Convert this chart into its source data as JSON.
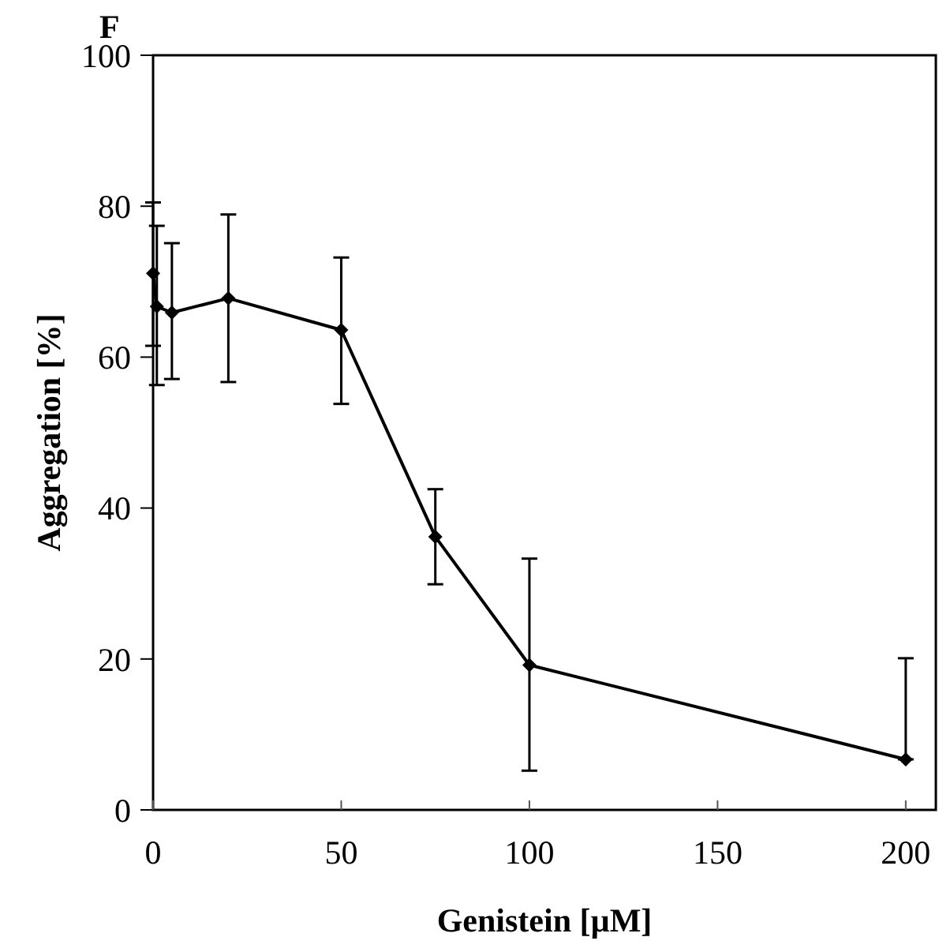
{
  "chart_data": {
    "type": "line",
    "xlabel": "Genistein [µM]",
    "ylabel": "Aggregation [%]",
    "annotations": [
      "F"
    ],
    "x": [
      0,
      1,
      5,
      20,
      50,
      75,
      100,
      200
    ],
    "series": [
      {
        "color": "#000000",
        "values": [
          71.1,
          66.7,
          65.9,
          67.8,
          63.6,
          36.2,
          19.2,
          6.7
        ],
        "errors": [
          [
            61.5,
            80.5
          ],
          [
            56.3,
            77.4
          ],
          [
            57.1,
            75.1
          ],
          [
            56.7,
            78.9
          ],
          [
            53.8,
            73.2
          ],
          [
            29.9,
            42.5
          ],
          [
            5.2,
            33.3
          ],
          [
            6.7,
            20.1
          ]
        ]
      }
    ],
    "xlim": [
      0,
      208
    ],
    "xticks": [
      0,
      50,
      100,
      150,
      200
    ],
    "ylim": [
      0,
      100
    ],
    "yticks": [
      0,
      20,
      40,
      60,
      80,
      100
    ],
    "marker": "diamond",
    "line_style": "solid"
  }
}
